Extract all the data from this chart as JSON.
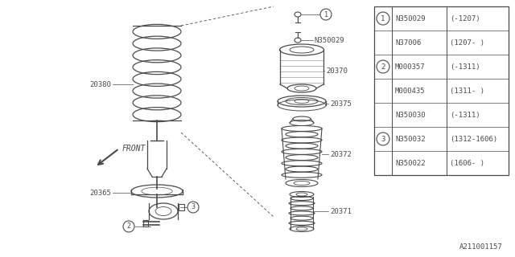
{
  "background_color": "#ffffff",
  "line_color": "#4a4a4a",
  "part_number_code": "A211001157",
  "table": {
    "rows": [
      {
        "circle": "1",
        "part": "N350029",
        "spec": "(-1207)"
      },
      {
        "circle": "",
        "part": "N37006",
        "spec": "(1207- )"
      },
      {
        "circle": "2",
        "part": "M000357",
        "spec": "(-1311)"
      },
      {
        "circle": "",
        "part": "M000435",
        "spec": "(1311- )"
      },
      {
        "circle": "",
        "part": "N350030",
        "spec": "(-1311)"
      },
      {
        "circle": "3",
        "part": "N350032",
        "spec": "(1312-1606)"
      },
      {
        "circle": "",
        "part": "N350022",
        "spec": "(1606- )"
      }
    ]
  }
}
